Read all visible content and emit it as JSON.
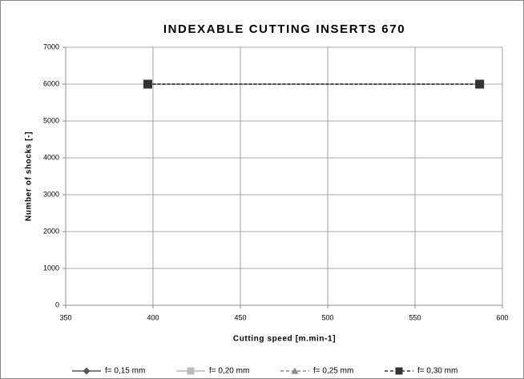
{
  "chart_data": {
    "type": "line",
    "title": "INDEXABLE CUTTING INSERTS 670",
    "xlabel": "Cutting speed [m.min-1]",
    "ylabel": "Number of shocks [-]",
    "xlim": [
      350,
      600
    ],
    "xticks": [
      350,
      400,
      450,
      500,
      550,
      600
    ],
    "ylim": [
      0,
      7000
    ],
    "yticks": [
      0,
      1000,
      2000,
      3000,
      4000,
      5000,
      6000,
      7000
    ],
    "grid": true,
    "legend": "bottom",
    "series": [
      {
        "name": "f= 0,15 mm",
        "color": "#555555",
        "dash": false,
        "marker": "diamond",
        "x": [
          397,
          587
        ],
        "values": [
          6000,
          6000
        ]
      },
      {
        "name": "f= 0,20 mm",
        "color": "#bbbbbb",
        "dash": false,
        "marker": "square",
        "x": [
          397,
          587
        ],
        "values": [
          6000,
          6000
        ]
      },
      {
        "name": "f= 0,25 mm",
        "color": "#888888",
        "dash": true,
        "marker": "triangle",
        "x": [
          397,
          587
        ],
        "values": [
          6000,
          6000
        ]
      },
      {
        "name": "f= 0,30 mm",
        "color": "#333333",
        "dash": true,
        "marker": "square",
        "x": [
          397,
          587
        ],
        "values": [
          6000,
          6000
        ]
      }
    ]
  }
}
